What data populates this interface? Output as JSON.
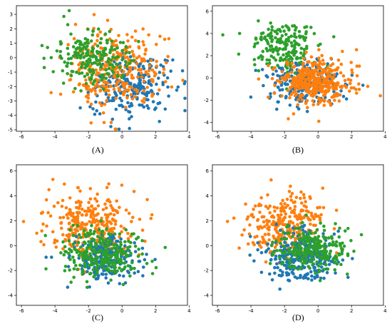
{
  "colors": {
    "blue": "#1f77b4",
    "orange": "#ff7f0e",
    "green": "#2ca02c"
  },
  "panels": [
    {
      "caption": "(A)",
      "x_ticks": [
        "-6",
        "-4",
        "-2",
        "0",
        "2",
        "4"
      ],
      "y_ticks": [
        "3",
        "2",
        "1",
        "0",
        "-1",
        "-2",
        "-3",
        "-4",
        "-5"
      ]
    },
    {
      "caption": "(B)",
      "x_ticks": [
        "-6",
        "-4",
        "-2",
        "0",
        "2",
        "4"
      ],
      "y_ticks": [
        "6",
        "4",
        "2",
        "0",
        "-2",
        "-4"
      ]
    },
    {
      "caption": "(C)",
      "x_ticks": [
        "-6",
        "-4",
        "-2",
        "0",
        "2",
        "4"
      ],
      "y_ticks": [
        "6",
        "4",
        "2",
        "0",
        "-2",
        "-4"
      ]
    },
    {
      "caption": "(D)",
      "x_ticks": [
        "-6",
        "-4",
        "-2",
        "0",
        "2",
        "4"
      ],
      "y_ticks": [
        "6",
        "4",
        "2",
        "0",
        "-2",
        "-4"
      ]
    }
  ],
  "chart_data": [
    {
      "type": "scatter",
      "caption": "(A)",
      "xlim": [
        -6.3,
        3.9
      ],
      "ylim": [
        -5.1,
        3.6
      ],
      "grid": false,
      "series": [
        {
          "color": "#1f77b4",
          "center": [
            0.5,
            -2.0
          ],
          "spread": [
            1.2,
            1.1
          ],
          "count": 230
        },
        {
          "color": "#ff7f0e",
          "center": [
            -0.5,
            -0.8
          ],
          "spread": [
            1.5,
            1.4
          ],
          "count": 300
        },
        {
          "color": "#2ca02c",
          "center": [
            -1.8,
            0.0
          ],
          "spread": [
            1.2,
            1.0
          ],
          "count": 200
        }
      ]
    },
    {
      "type": "scatter",
      "caption": "(B)",
      "xlim": [
        -6.3,
        3.9
      ],
      "ylim": [
        -4.8,
        6.5
      ],
      "grid": false,
      "series": [
        {
          "color": "#1f77b4",
          "center": [
            -0.8,
            -0.5
          ],
          "spread": [
            1.1,
            1.0
          ],
          "count": 240
        },
        {
          "color": "#2ca02c",
          "center": [
            -2.0,
            2.8
          ],
          "spread": [
            1.0,
            1.1
          ],
          "count": 190
        },
        {
          "color": "#ff7f0e",
          "center": [
            -0.2,
            -0.3
          ],
          "spread": [
            1.1,
            1.0
          ],
          "count": 380
        }
      ]
    },
    {
      "type": "scatter",
      "caption": "(C)",
      "xlim": [
        -6.3,
        3.9
      ],
      "ylim": [
        -4.8,
        6.5
      ],
      "grid": false,
      "series": [
        {
          "color": "#ff7f0e",
          "center": [
            -1.8,
            1.6
          ],
          "spread": [
            1.3,
            1.3
          ],
          "count": 300
        },
        {
          "color": "#1f77b4",
          "center": [
            -1.0,
            -1.0
          ],
          "spread": [
            1.1,
            0.9
          ],
          "count": 220
        },
        {
          "color": "#2ca02c",
          "center": [
            -1.3,
            -0.6
          ],
          "spread": [
            1.2,
            0.9
          ],
          "count": 280
        }
      ]
    },
    {
      "type": "scatter",
      "caption": "(D)",
      "xlim": [
        -6.3,
        3.9
      ],
      "ylim": [
        -4.8,
        6.5
      ],
      "grid": false,
      "series": [
        {
          "color": "#ff7f0e",
          "center": [
            -2.0,
            1.6
          ],
          "spread": [
            1.2,
            1.3
          ],
          "count": 280
        },
        {
          "color": "#1f77b4",
          "center": [
            -1.0,
            -1.0
          ],
          "spread": [
            1.1,
            1.0
          ],
          "count": 280
        },
        {
          "color": "#2ca02c",
          "center": [
            -0.4,
            -0.3
          ],
          "spread": [
            1.1,
            0.9
          ],
          "count": 260
        }
      ]
    }
  ]
}
